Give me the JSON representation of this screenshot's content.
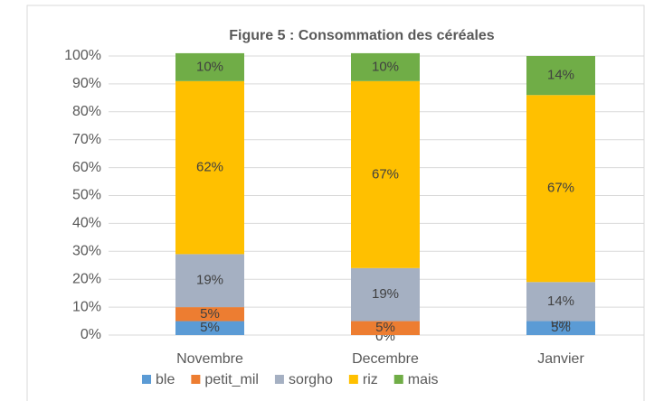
{
  "chart_data": {
    "type": "stacked_bar",
    "title": "Figure 5 : Consommation des céréales",
    "categories": [
      "Novembre",
      "Decembre",
      "Janvier"
    ],
    "series": [
      {
        "name": "ble",
        "color": "#5b9bd5",
        "values": [
          5,
          0,
          5
        ],
        "value_labels": [
          "5%",
          "0%",
          "5%"
        ]
      },
      {
        "name": "petit_mil",
        "color": "#ed7d31",
        "values": [
          5,
          5,
          0
        ],
        "value_labels": [
          "5%",
          "5%",
          "0%"
        ]
      },
      {
        "name": "sorgho",
        "color": "#a5b0c2",
        "values": [
          19,
          19,
          14
        ],
        "value_labels": [
          "19%",
          "19%",
          "14%"
        ]
      },
      {
        "name": "riz",
        "color": "#ffc000",
        "values": [
          62,
          67,
          67
        ],
        "value_labels": [
          "62%",
          "67%",
          "67%"
        ]
      },
      {
        "name": "mais",
        "color": "#70ad47",
        "values": [
          10,
          10,
          14
        ],
        "value_labels": [
          "10%",
          "10%",
          "14%"
        ]
      }
    ],
    "ylim": [
      0,
      100
    ],
    "yticks": [
      {
        "value": 0,
        "label": "0%"
      },
      {
        "value": 10,
        "label": "10%"
      },
      {
        "value": 20,
        "label": "20%"
      },
      {
        "value": 30,
        "label": "30%"
      },
      {
        "value": 40,
        "label": "40%"
      },
      {
        "value": 50,
        "label": "50%"
      },
      {
        "value": 60,
        "label": "60%"
      },
      {
        "value": 70,
        "label": "70%"
      },
      {
        "value": 80,
        "label": "80%"
      },
      {
        "value": 90,
        "label": "90%"
      },
      {
        "value": 100,
        "label": "100%"
      }
    ],
    "grid": true,
    "legend": "bottom"
  }
}
